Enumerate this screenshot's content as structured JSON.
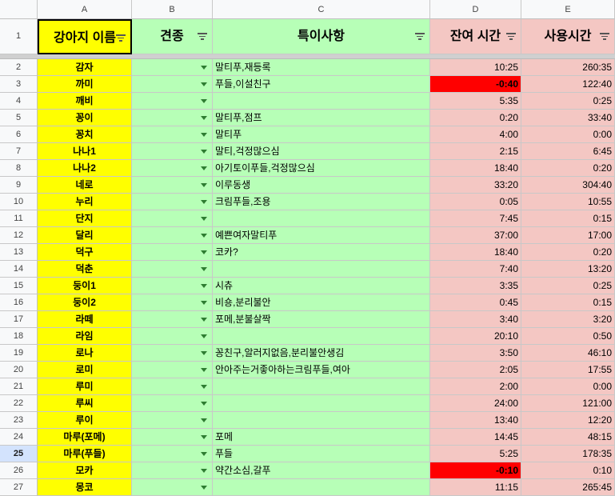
{
  "columns": [
    "A",
    "B",
    "C",
    "D",
    "E"
  ],
  "headers": {
    "name": "강아지 이름",
    "breed": "견종",
    "notes": "특이사항",
    "remaining": "잔여 시간",
    "used": "사용시간"
  },
  "header_row_number": "1",
  "selected_row_number": "25",
  "colors": {
    "name_bg": "#ffff00",
    "green_bg": "#b7ffb7",
    "pink_bg": "#f4c7c3",
    "negative_bg": "#ff0000"
  },
  "rows": [
    {
      "n": "2",
      "name": "감자",
      "notes": "말티푸,재등록",
      "remaining": "10:25",
      "used": "260:35",
      "neg": false
    },
    {
      "n": "3",
      "name": "까미",
      "notes": "푸들,이설친구",
      "remaining": "-0:40",
      "used": "122:40",
      "neg": true
    },
    {
      "n": "4",
      "name": "깨비",
      "notes": "",
      "remaining": "5:35",
      "used": "0:25",
      "neg": false
    },
    {
      "n": "5",
      "name": "꽁이",
      "notes": "말티푸,점프",
      "remaining": "0:20",
      "used": "33:40",
      "neg": false
    },
    {
      "n": "6",
      "name": "꽁치",
      "notes": "말티푸",
      "remaining": "4:00",
      "used": "0:00",
      "neg": false
    },
    {
      "n": "7",
      "name": "나나1",
      "notes": "말티,걱정많으심",
      "remaining": "2:15",
      "used": "6:45",
      "neg": false
    },
    {
      "n": "8",
      "name": "나나2",
      "notes": "아기토이푸들,걱정많으심",
      "remaining": "18:40",
      "used": "0:20",
      "neg": false
    },
    {
      "n": "9",
      "name": "네로",
      "notes": "이루동생",
      "remaining": "33:20",
      "used": "304:40",
      "neg": false
    },
    {
      "n": "10",
      "name": "누리",
      "notes": "크림푸들,조용",
      "remaining": "0:05",
      "used": "10:55",
      "neg": false
    },
    {
      "n": "11",
      "name": "단지",
      "notes": "",
      "remaining": "7:45",
      "used": "0:15",
      "neg": false
    },
    {
      "n": "12",
      "name": "달리",
      "notes": "예쁜여자말티푸",
      "remaining": "37:00",
      "used": "17:00",
      "neg": false
    },
    {
      "n": "13",
      "name": "덕구",
      "notes": "코카?",
      "remaining": "18:40",
      "used": "0:20",
      "neg": false
    },
    {
      "n": "14",
      "name": "덕춘",
      "notes": "",
      "remaining": "7:40",
      "used": "13:20",
      "neg": false
    },
    {
      "n": "15",
      "name": "둥이1",
      "notes": "시츄",
      "remaining": "3:35",
      "used": "0:25",
      "neg": false
    },
    {
      "n": "16",
      "name": "둥이2",
      "notes": "비숑,분리불안",
      "remaining": "0:45",
      "used": "0:15",
      "neg": false
    },
    {
      "n": "17",
      "name": "라떼",
      "notes": "포메,분불살짝",
      "remaining": "3:40",
      "used": "3:20",
      "neg": false
    },
    {
      "n": "18",
      "name": "라임",
      "notes": "",
      "remaining": "20:10",
      "used": "0:50",
      "neg": false
    },
    {
      "n": "19",
      "name": "로나",
      "notes": "꽁친구,알러지없음,분리불안생김",
      "remaining": "3:50",
      "used": "46:10",
      "neg": false
    },
    {
      "n": "20",
      "name": "로미",
      "notes": "안아주는거좋아하는크림푸들,여아",
      "remaining": "2:05",
      "used": "17:55",
      "neg": false
    },
    {
      "n": "21",
      "name": "루미",
      "notes": "",
      "remaining": "2:00",
      "used": "0:00",
      "neg": false
    },
    {
      "n": "22",
      "name": "루씨",
      "notes": "",
      "remaining": "24:00",
      "used": "121:00",
      "neg": false
    },
    {
      "n": "23",
      "name": "루이",
      "notes": "",
      "remaining": "13:40",
      "used": "12:20",
      "neg": false
    },
    {
      "n": "24",
      "name": "마루(포메)",
      "notes": "포메",
      "remaining": "14:45",
      "used": "48:15",
      "neg": false
    },
    {
      "n": "25",
      "name": "마루(푸들)",
      "notes": "푸들",
      "remaining": "5:25",
      "used": "178:35",
      "neg": false
    },
    {
      "n": "26",
      "name": "모카",
      "notes": "약간소심,갈푸",
      "remaining": "-0:10",
      "used": "0:10",
      "neg": true
    },
    {
      "n": "27",
      "name": "몽코",
      "notes": "",
      "remaining": "11:15",
      "used": "265:45",
      "neg": false
    }
  ]
}
